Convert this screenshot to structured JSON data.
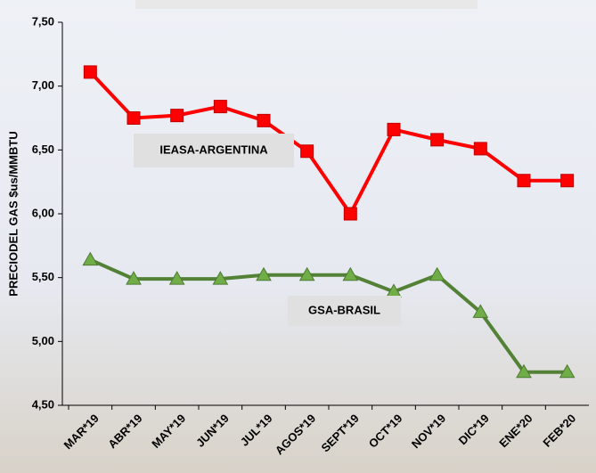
{
  "chart_data": {
    "type": "line",
    "y_label": "PRECIODEL GAS $us/MMBTU",
    "categories": [
      "MAR*19",
      "ABR*19",
      "MAY*19",
      "JUN*19",
      "JUL*19",
      "AGOS*19",
      "SEPT*19",
      "OCT*19",
      "NOV*19",
      "DIC*19",
      "ENE*20",
      "FEB*20"
    ],
    "series": [
      {
        "name": "IEASA-ARGENTINA",
        "color": "#ff0000",
        "marker": "square",
        "values": [
          7.11,
          6.75,
          6.77,
          6.84,
          6.73,
          6.49,
          6.0,
          6.66,
          6.58,
          6.51,
          6.26,
          6.26
        ]
      },
      {
        "name": "GSA-BRASIL",
        "color": "#538135",
        "marker": "triangle",
        "values": [
          5.64,
          5.49,
          5.49,
          5.49,
          5.52,
          5.52,
          5.52,
          5.39,
          5.52,
          5.23,
          4.76,
          4.76
        ]
      }
    ],
    "ylim": [
      4.5,
      7.5
    ],
    "yticks": [
      {
        "value": 4.5,
        "label": "4,50"
      },
      {
        "value": 5.0,
        "label": "5,00"
      },
      {
        "value": 5.5,
        "label": "5,50"
      },
      {
        "value": 6.0,
        "label": "6,00"
      },
      {
        "value": 6.5,
        "label": "6,50"
      },
      {
        "value": 7.0,
        "label": "7,00"
      },
      {
        "value": 7.5,
        "label": "7,50"
      }
    ]
  }
}
